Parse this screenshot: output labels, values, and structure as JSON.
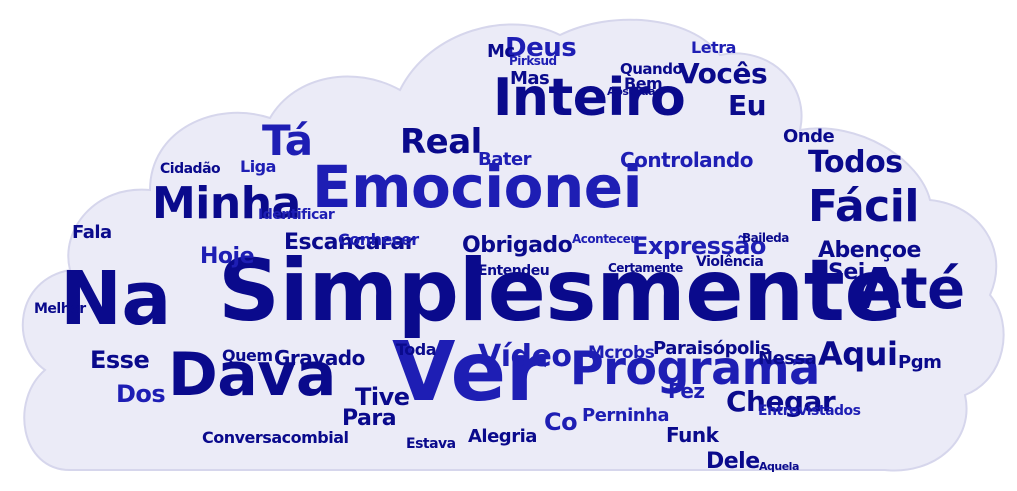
{
  "cloud": {
    "background_color": "#ffffff",
    "cloud_fill": "#ebebf7",
    "cloud_border": "#d6d6ec",
    "word_color_primary": "#0a0a8c",
    "word_color_secondary": "#1e1eb4"
  },
  "words": [
    {
      "text": "Simplesmente",
      "weight": 1.0
    },
    {
      "text": "Emocionei",
      "weight": 0.8
    },
    {
      "text": "Na",
      "weight": 0.82
    },
    {
      "text": "Até",
      "weight": 0.55
    },
    {
      "text": "Ver",
      "weight": 0.8
    },
    {
      "text": "Dava",
      "weight": 0.62
    },
    {
      "text": "Inteiro",
      "weight": 0.6
    },
    {
      "text": "Programa",
      "weight": 0.52
    },
    {
      "text": "Minha",
      "weight": 0.46
    },
    {
      "text": "Fácil",
      "weight": 0.45
    },
    {
      "text": "Tá",
      "weight": 0.44
    },
    {
      "text": "Real",
      "weight": 0.36
    },
    {
      "text": "Todos",
      "weight": 0.32
    },
    {
      "text": "Vídeo",
      "weight": 0.32
    },
    {
      "text": "Aqui",
      "weight": 0.34
    },
    {
      "text": "Chegar",
      "weight": 0.3
    },
    {
      "text": "Deus",
      "weight": 0.28
    },
    {
      "text": "Vocês",
      "weight": 0.3
    },
    {
      "text": "Eu",
      "weight": 0.3
    },
    {
      "text": "Expressão",
      "weight": 0.25
    },
    {
      "text": "Escancarar",
      "weight": 0.25
    },
    {
      "text": "Obrigado",
      "weight": 0.25
    },
    {
      "text": "Hoje",
      "weight": 0.25
    },
    {
      "text": "Abençoe",
      "weight": 0.24
    },
    {
      "text": "Sei",
      "weight": 0.24
    },
    {
      "text": "Controlando",
      "weight": 0.22
    },
    {
      "text": "Gravado",
      "weight": 0.22
    },
    {
      "text": "Esse",
      "weight": 0.24
    },
    {
      "text": "Dos",
      "weight": 0.24
    },
    {
      "text": "Para",
      "weight": 0.24
    },
    {
      "text": "Tive",
      "weight": 0.24
    },
    {
      "text": "Co",
      "weight": 0.26
    },
    {
      "text": "Dele",
      "weight": 0.24
    },
    {
      "text": "Funk",
      "weight": 0.22
    },
    {
      "text": "Perninha",
      "weight": 0.2
    },
    {
      "text": "Alegria",
      "weight": 0.2
    },
    {
      "text": "Paraisópolis",
      "weight": 0.2
    },
    {
      "text": "Mcrobs",
      "weight": 0.18
    },
    {
      "text": "Conversacombial",
      "weight": 0.17
    },
    {
      "text": "Nessa",
      "weight": 0.19
    },
    {
      "text": "Fez",
      "weight": 0.2
    },
    {
      "text": "Pgm",
      "weight": 0.18
    },
    {
      "text": "Onde",
      "weight": 0.19
    },
    {
      "text": "Bater",
      "weight": 0.18
    },
    {
      "text": "Mas",
      "weight": 0.18
    },
    {
      "text": "Fala",
      "weight": 0.18
    },
    {
      "text": "Liga",
      "weight": 0.17
    },
    {
      "text": "Quem",
      "weight": 0.17
    },
    {
      "text": "Toda",
      "weight": 0.16
    },
    {
      "text": "Conhecer",
      "weight": 0.16
    },
    {
      "text": "Bem",
      "weight": 0.16
    },
    {
      "text": "Mc",
      "weight": 0.18
    },
    {
      "text": "Letra",
      "weight": 0.15
    },
    {
      "text": "Quando",
      "weight": 0.14
    },
    {
      "text": "Entendeu",
      "weight": 0.14
    },
    {
      "text": "Identificar",
      "weight": 0.14
    },
    {
      "text": "Cidadão",
      "weight": 0.14
    },
    {
      "text": "Melhor",
      "weight": 0.14
    },
    {
      "text": "Entrevistados",
      "weight": 0.13
    },
    {
      "text": "Estava",
      "weight": 0.13
    },
    {
      "text": "Violência",
      "weight": 0.13
    },
    {
      "text": "Aconteceu",
      "weight": 0.13
    },
    {
      "text": "Certamente",
      "weight": 0.12
    },
    {
      "text": "Baileda",
      "weight": 0.12
    },
    {
      "text": "Pirksud",
      "weight": 0.12
    },
    {
      "text": "Absurda",
      "weight": 0.11
    },
    {
      "text": "Aquela",
      "weight": 0.11
    }
  ]
}
